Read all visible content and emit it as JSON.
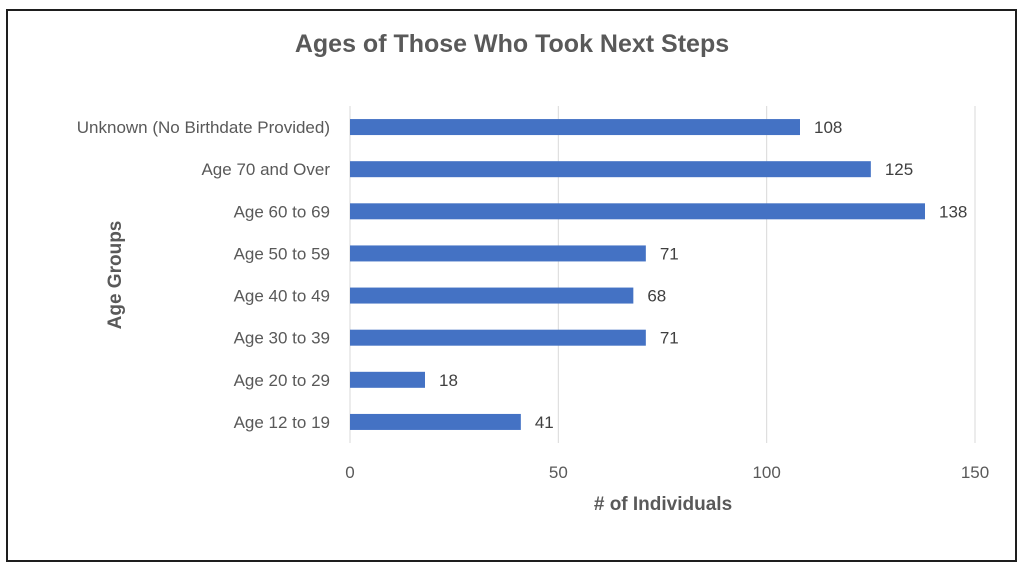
{
  "chart_data": {
    "type": "bar",
    "orientation": "horizontal",
    "title": "Ages of Those Who Took Next Steps",
    "xlabel": "# of Individuals",
    "ylabel": "Age Groups",
    "categories": [
      "Unknown (No Birthdate Provided)",
      "Age 70 and Over",
      "Age 60 to 69",
      "Age 50 to 59",
      "Age 40 to 49",
      "Age 30 to 39",
      "Age 20 to 29",
      "Age 12 to 19"
    ],
    "values": [
      108,
      125,
      138,
      71,
      68,
      71,
      18,
      41
    ],
    "xlim": [
      0,
      150
    ],
    "xticks": [
      0,
      50,
      100,
      150
    ],
    "grid": "vertical",
    "legend": "none",
    "data_labels": true,
    "bar_color": "#4472c4",
    "grid_color": "#d9d9d9",
    "text_color": "#595959"
  }
}
